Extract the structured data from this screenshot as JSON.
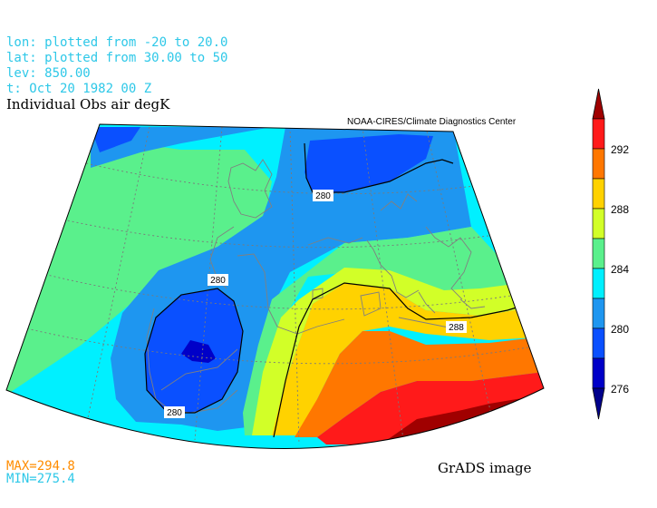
{
  "header": {
    "lon": "lon: plotted from -20 to 20.0",
    "lat": "lat: plotted from 30.00 to 50",
    "lev": "lev: 850.00",
    "time": "t: Oct 20 1982 00 Z",
    "title": "Individual Obs air degK"
  },
  "credit": "NOAA-CIRES/Climate Diagnostics Center",
  "stats": {
    "max": "MAX=294.8",
    "min": "MIN=275.4"
  },
  "footer": "GrADS image",
  "contour_labels": [
    "280",
    "280",
    "280",
    "288"
  ],
  "colorbar": {
    "labels": [
      "292",
      "288",
      "284",
      "280",
      "276"
    ],
    "colors": [
      "#a00000",
      "#ff1a1a",
      "#ff7700",
      "#ffd200",
      "#d2ff28",
      "#5af08c",
      "#00f0ff",
      "#1e96f0",
      "#0a50ff",
      "#0000c8",
      "#00008c"
    ]
  },
  "colors": {
    "c274": "#0000c8",
    "c276": "#0a50ff",
    "c278": "#1e96f0",
    "c282": "#00f0ff",
    "c284": "#5af08c",
    "c286": "#d2ff28",
    "c288": "#ffd200",
    "c290": "#ff7700",
    "c292": "#ff1a1a",
    "c294": "#a00000",
    "header": "#2ec8e8",
    "max": "#ff8c00",
    "min": "#2ec8e8"
  }
}
